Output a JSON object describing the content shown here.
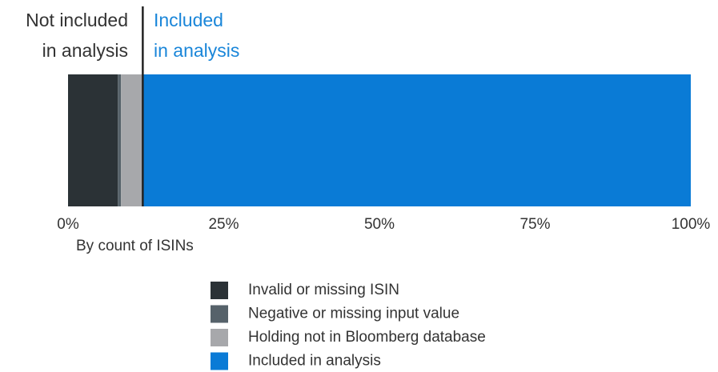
{
  "chart_data": {
    "type": "stacked-bar-horizontal",
    "annotations": {
      "left": [
        "Not included",
        "in analysis"
      ],
      "right": [
        "Included",
        "in analysis"
      ]
    },
    "x_label": "By count of ISINs",
    "series": [
      {
        "name": "Invalid or missing ISIN",
        "color": "#2b3236",
        "values": [
          8
        ]
      },
      {
        "name": "Negative or missing input value",
        "color": "#56626a",
        "values": [
          0.5
        ]
      },
      {
        "name": "Holding not in Bloomberg database",
        "color": "#a7a8ab",
        "values": [
          3.5
        ]
      },
      {
        "name": "Included in analysis",
        "color": "#0a7bd6",
        "values": [
          88
        ]
      }
    ],
    "xlim": [
      0,
      100
    ],
    "xticks": [
      {
        "value": 0,
        "label": "0%"
      },
      {
        "value": 25,
        "label": "25%"
      },
      {
        "value": 50,
        "label": "50%"
      },
      {
        "value": 75,
        "label": "75%"
      },
      {
        "value": 100,
        "label": "100%"
      }
    ]
  }
}
